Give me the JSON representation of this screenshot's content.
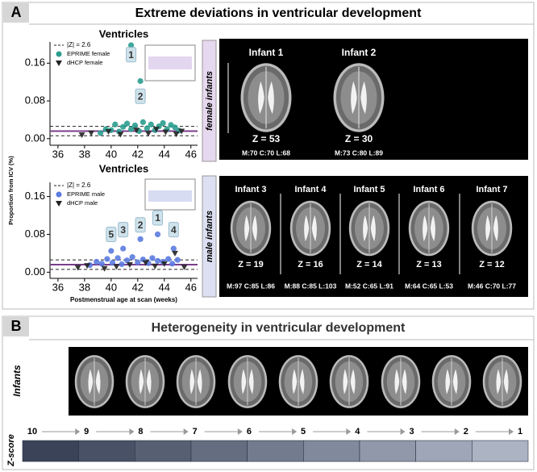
{
  "panel_a": {
    "label": "A",
    "title": "Extreme deviations in ventricular development",
    "female_label": "female infants",
    "male_label": "male infants",
    "infants": [
      {
        "name": "Infant 1",
        "z": "Z = 53",
        "scores": "M:70 C:70 L:68"
      },
      {
        "name": "Infant 2",
        "z": "Z = 30",
        "scores": "M:73 C:80 L:89"
      },
      {
        "name": "Infant 3",
        "z": "Z = 19",
        "scores": "M:97 C:85 L:86"
      },
      {
        "name": "Infant 4",
        "z": "Z = 16",
        "scores": "M:88 C:85 L:103"
      },
      {
        "name": "Infant 5",
        "z": "Z = 14",
        "scores": "M:52 C:65 L:91"
      },
      {
        "name": "Infant 6",
        "z": "Z = 13",
        "scores": "M:64 C:65 L:53"
      },
      {
        "name": "Infant 7",
        "z": "Z = 12",
        "scores": "M:46 C:70 L:77"
      }
    ]
  },
  "chart_data": [
    {
      "type": "scatter",
      "title": "Ventricles",
      "xlim": [
        35.4,
        46.5
      ],
      "ylim": [
        -0.014,
        0.205
      ],
      "xticks": [
        36,
        38,
        40,
        42,
        44,
        46
      ],
      "yticks": [
        {
          "value": 0,
          "label": "0.00"
        },
        {
          "value": 0.08,
          "label": "0.08"
        },
        {
          "value": 0.16,
          "label": "0.16"
        }
      ],
      "threshold": {
        "name": "|Z| = 2.6",
        "values": [
          0.006,
          0.026
        ]
      },
      "mean_line": 0.016,
      "series": [
        {
          "name": "EPRIME female",
          "color": "#2a9d8f",
          "marker": "circle",
          "x": [
            39.2,
            39.6,
            40.0,
            40.3,
            40.6,
            40.9,
            41.2,
            41.5,
            41.8,
            42.1,
            42.4,
            42.7,
            43.0,
            43.3,
            43.6,
            43.9,
            44.2,
            44.5,
            44.8,
            45.1,
            41.5,
            42.2
          ],
          "values": [
            0.012,
            0.02,
            0.018,
            0.03,
            0.015,
            0.025,
            0.032,
            0.02,
            0.028,
            0.016,
            0.035,
            0.022,
            0.03,
            0.018,
            0.026,
            0.033,
            0.02,
            0.029,
            0.024,
            0.017,
            0.198,
            0.122
          ]
        },
        {
          "name": "dHCP female",
          "color": "#222222",
          "marker": "triangle",
          "x": [
            37.8,
            38.5,
            39.8,
            40.7,
            41.9,
            42.8,
            43.4,
            44.1,
            44.9,
            45.3
          ],
          "values": [
            0.008,
            0.012,
            0.015,
            0.009,
            0.018,
            0.011,
            0.02,
            0.014,
            0.01,
            0.016
          ]
        }
      ],
      "annotations": [
        {
          "text": "1",
          "x": 41.5,
          "y": 0.178
        },
        {
          "text": "2",
          "x": 42.2,
          "y": 0.09
        }
      ]
    },
    {
      "type": "scatter",
      "title": "Ventricles",
      "xlim": [
        35.4,
        46.5
      ],
      "ylim": [
        -0.013,
        0.19
      ],
      "xticks": [
        36,
        38,
        40,
        42,
        44,
        46
      ],
      "yticks": [
        {
          "value": 0,
          "label": "0.00"
        },
        {
          "value": 0.08,
          "label": "0.08"
        },
        {
          "value": 0.16,
          "label": "0.16"
        }
      ],
      "y_label": "Proportion from ICV (%)",
      "x_label": "Postmenstrual age at scan (weeks)",
      "threshold": {
        "name": "|Z| = 2.6",
        "values": [
          0.006,
          0.026
        ]
      },
      "mean_line": 0.016,
      "series": [
        {
          "name": "EPRIME male",
          "color": "#5b7be0",
          "marker": "circle",
          "x": [
            38.4,
            38.9,
            39.3,
            39.7,
            40.1,
            40.5,
            40.8,
            41.2,
            41.6,
            42.0,
            42.4,
            42.8,
            43.1,
            43.5,
            43.9,
            44.3,
            44.6,
            45.0,
            40.0,
            40.9,
            42.2,
            43.5,
            44.7
          ],
          "values": [
            0.015,
            0.022,
            0.018,
            0.028,
            0.02,
            0.03,
            0.017,
            0.025,
            0.032,
            0.021,
            0.027,
            0.019,
            0.03,
            0.024,
            0.022,
            0.028,
            0.018,
            0.026,
            0.045,
            0.05,
            0.07,
            0.08,
            0.05
          ]
        },
        {
          "name": "dHCP male",
          "color": "#222222",
          "marker": "triangle",
          "x": [
            37.5,
            38.2,
            39.5,
            40.4,
            41.4,
            42.6,
            43.3,
            44.0,
            44.8,
            45.5
          ],
          "values": [
            0.01,
            0.014,
            0.008,
            0.012,
            0.016,
            0.02,
            0.013,
            0.018,
            0.04,
            0.011
          ]
        }
      ],
      "annotations": [
        {
          "text": "5",
          "x": 40.0,
          "y": 0.08
        },
        {
          "text": "3",
          "x": 40.9,
          "y": 0.09
        },
        {
          "text": "2",
          "x": 42.2,
          "y": 0.1
        },
        {
          "text": "1",
          "x": 43.5,
          "y": 0.115
        },
        {
          "text": "4",
          "x": 44.7,
          "y": 0.09
        }
      ]
    }
  ],
  "panel_b": {
    "label": "B",
    "title": "Heterogeneity in ventricular development",
    "row_label": "Infants",
    "scale_label": "Z-score",
    "z_steps": [
      "10",
      "9",
      "8",
      "7",
      "6",
      "5",
      "4",
      "3",
      "2",
      "1"
    ]
  }
}
